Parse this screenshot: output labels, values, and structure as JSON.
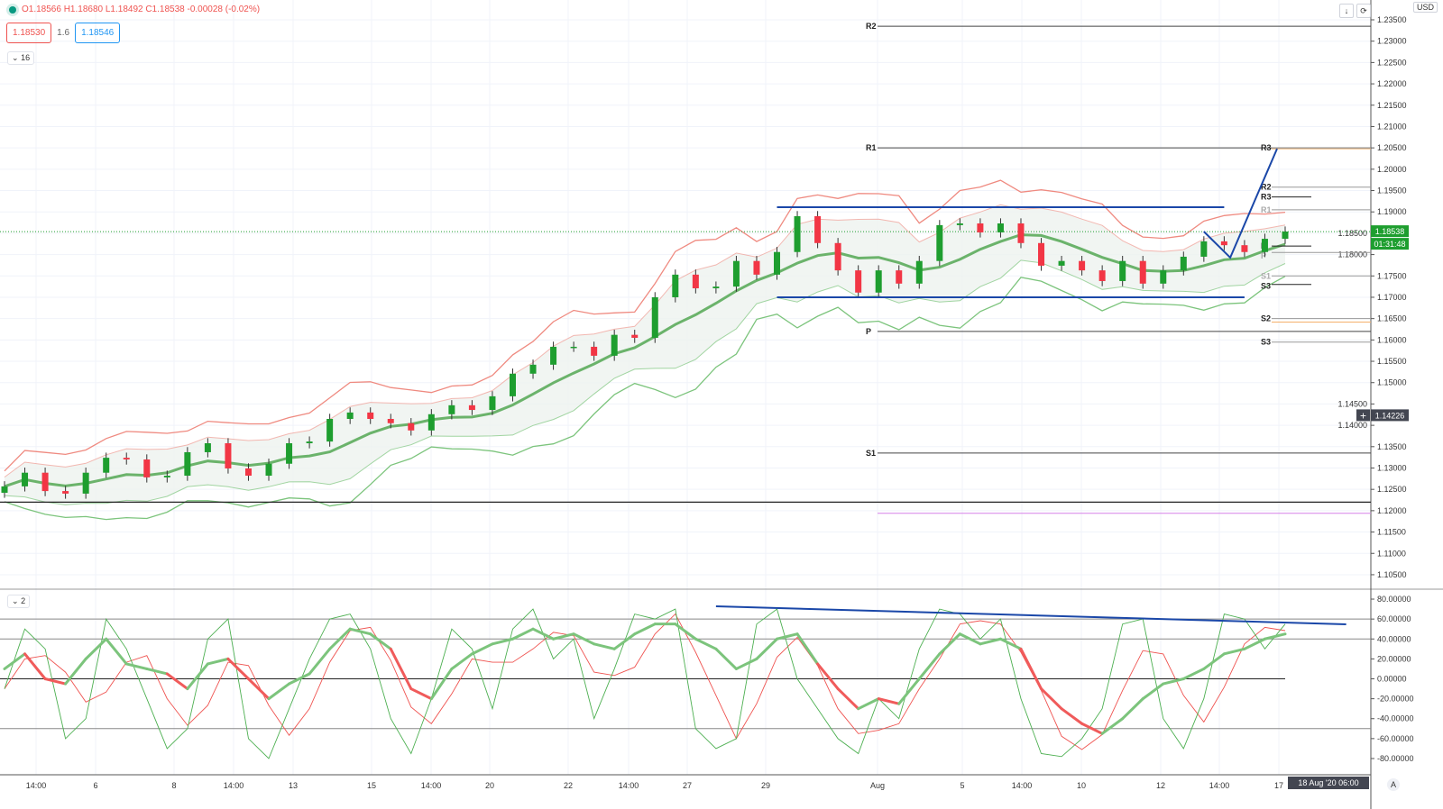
{
  "header": {
    "ohlc_text": "O1.18566 H1.18680 L1.18492 C1.18538 -0.00028 (-0.02%)",
    "sell_price": "1.18530",
    "spread": "1.6",
    "buy_price": "1.18546",
    "main_collapse": "16",
    "osc_collapse": "2",
    "currency": "USD",
    "scroll_icon": "arrow-down-icon",
    "reset_icon": "refresh-icon"
  },
  "axis": {
    "current_price": "1.18538",
    "countdown": "01:31:48",
    "crosshair_price": "1.14226",
    "crosshair_time": "18 Aug '20   06:00",
    "auto_button": "A"
  },
  "colors": {
    "up": "#1e9e2f",
    "down": "#f23645",
    "trend": "#1a47a8",
    "upper_band": "#ef8a80",
    "lower_band": "#7cc47c",
    "ma": "#6bb36b"
  },
  "chart_data": [
    {
      "type": "candlestick",
      "title": "",
      "ylim": [
        1.1025,
        1.2375
      ],
      "price_ticks": [
        "1.23500",
        "1.23000",
        "1.22500",
        "1.22000",
        "1.21500",
        "1.21000",
        "1.20500",
        "1.20000",
        "1.19500",
        "1.19000",
        "1.18500",
        "1.18000",
        "1.17500",
        "1.17000",
        "1.16500",
        "1.16000",
        "1.15500",
        "1.15000",
        "1.14500",
        "1.14000",
        "1.13500",
        "1.13000",
        "1.12500",
        "1.12000",
        "1.11500",
        "1.11000",
        "1.10500"
      ],
      "time_ticks": [
        "14:00",
        "6",
        "8",
        "14:00",
        "13",
        "15",
        "14:00",
        "20",
        "22",
        "14:00",
        "27",
        "29",
        "Aug",
        "5",
        "14:00",
        "10",
        "12",
        "14:00",
        "17"
      ],
      "closes": [
        1.1257,
        1.1289,
        1.1246,
        1.124,
        1.1289,
        1.1324,
        1.132,
        1.1278,
        1.1282,
        1.1337,
        1.1358,
        1.1299,
        1.1282,
        1.131,
        1.1358,
        1.1362,
        1.1415,
        1.143,
        1.1415,
        1.1405,
        1.1388,
        1.1426,
        1.1447,
        1.1436,
        1.1468,
        1.1521,
        1.1542,
        1.1584,
        1.1584,
        1.1563,
        1.1612,
        1.1605,
        1.17,
        1.1753,
        1.1721,
        1.1725,
        1.1785,
        1.1753,
        1.1806,
        1.189,
        1.1827,
        1.1763,
        1.1711,
        1.1763,
        1.1732,
        1.1785,
        1.1869,
        1.1873,
        1.1852,
        1.1873,
        1.1827,
        1.1774,
        1.1785,
        1.1763,
        1.1738,
        1.1785,
        1.1732,
        1.1763,
        1.1795,
        1.1831,
        1.1822,
        1.1806,
        1.1837,
        1.1854
      ],
      "pivots_monthly": [
        {
          "label": "R2",
          "price": 1.2335
        },
        {
          "label": "R1",
          "price": 1.205
        },
        {
          "label": "P",
          "price": 1.162
        },
        {
          "label": "S1",
          "price": 1.1335
        }
      ],
      "pivots_daily": [
        {
          "label": "R3",
          "price": 1.205
        },
        {
          "label": "R2",
          "price": 1.1958
        },
        {
          "label": "R3",
          "price": 1.1935
        },
        {
          "label": "R1",
          "price": 1.1905
        },
        {
          "label": "P",
          "price": 1.182
        },
        {
          "label": "P",
          "price": 1.1805
        },
        {
          "label": "S1",
          "price": 1.175
        },
        {
          "label": "S3",
          "price": 1.173
        },
        {
          "label": "S2",
          "price": 1.165
        },
        {
          "label": "S3",
          "price": 1.1595
        }
      ],
      "horizontal_lines": [
        {
          "price": 1.122,
          "color": "#222222"
        },
        {
          "price": 1.1194,
          "color": "#d580e8"
        },
        {
          "price": 1.2048,
          "color": "#f5b06a"
        },
        {
          "price": 1.1642,
          "color": "#f5b06a"
        }
      ],
      "trendlines": [
        {
          "points": [
            [
              38,
              1.1911
            ],
            [
              60,
              1.1911
            ]
          ]
        },
        {
          "points": [
            [
              38,
              1.17
            ],
            [
              61,
              1.17
            ]
          ]
        },
        {
          "points": [
            [
              59,
              1.1854
            ],
            [
              60.3,
              1.1793
            ],
            [
              62.6,
              1.2048
            ]
          ]
        }
      ]
    },
    {
      "type": "line",
      "title": "",
      "ylim": [
        -90,
        90
      ],
      "ticks": [
        "80.00000",
        "60.00000",
        "40.00000",
        "20.00000",
        "0.00000",
        "-20.00000",
        "-40.00000",
        "-60.00000",
        "-80.00000"
      ],
      "levels": [
        60,
        40,
        0,
        -50
      ],
      "fast": [
        -10,
        50,
        30,
        -60,
        -40,
        60,
        30,
        -20,
        -70,
        -50,
        40,
        60,
        -60,
        -80,
        -30,
        20,
        60,
        65,
        30,
        -40,
        -75,
        -20,
        50,
        30,
        -30,
        50,
        70,
        20,
        40,
        -40,
        10,
        65,
        60,
        70,
        -50,
        -70,
        -60,
        55,
        70,
        0,
        -30,
        -60,
        -75,
        -20,
        -40,
        30,
        70,
        65,
        40,
        60,
        -20,
        -75,
        -78,
        -60,
        -30,
        55,
        60,
        -40,
        -70,
        -20,
        65,
        60,
        30,
        55
      ],
      "slow": [
        10,
        25,
        0,
        -5,
        20,
        40,
        15,
        10,
        5,
        -10,
        15,
        20,
        0,
        -20,
        -5,
        5,
        30,
        50,
        45,
        30,
        -10,
        -20,
        10,
        25,
        35,
        40,
        50,
        40,
        45,
        35,
        30,
        45,
        55,
        55,
        40,
        30,
        10,
        20,
        40,
        45,
        15,
        -10,
        -30,
        -20,
        -25,
        0,
        25,
        45,
        35,
        40,
        30,
        -10,
        -30,
        -45,
        -55,
        -40,
        -20,
        -5,
        0,
        10,
        25,
        30,
        40,
        45
      ],
      "trendline": [
        [
          35,
          72.8
        ],
        [
          66,
          54.7
        ]
      ]
    }
  ]
}
